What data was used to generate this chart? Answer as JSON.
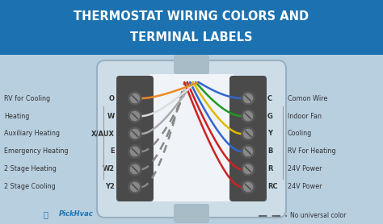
{
  "title_line1": "THERMOSTAT WIRING COLORS AND",
  "title_line2": "TERMINAL LABELS",
  "title_bg": "#1c72b0",
  "title_text_color": "#ffffff",
  "body_bg": "#b8cfe0",
  "connector_bg": "#4a4a4a",
  "left_labels": [
    "2 Stage Cooling",
    "2 Stage Heating",
    "Emergency Heating",
    "Auxiliary Heating",
    "Heating",
    "RV for Cooling"
  ],
  "left_terminals": [
    "Y2",
    "W2",
    "E",
    "X/AUX",
    "W",
    "O"
  ],
  "right_terminals": [
    "RC",
    "R",
    "B",
    "Y",
    "G",
    "C"
  ],
  "right_labels": [
    "24V Power",
    "24V Power",
    "RV For Heating",
    "Cooling",
    "Indoor Fan",
    "Comon Wire"
  ],
  "left_wire_colors": [
    "#aaccee",
    "#cc8822",
    "#aaaaaa",
    "#aaaaaa",
    "#dddddd",
    "#ee8822"
  ],
  "right_wire_colors": [
    "#cc2222",
    "#cc2222",
    "#3366cc",
    "#ddbb00",
    "#229922",
    "#3366cc"
  ],
  "dashed_rows": [
    0,
    1,
    2
  ],
  "logo_text": "PickHvac",
  "logo_color": "#1c72b0",
  "footer_dash_color": "#666666",
  "footer_text": "No universal color",
  "text_color": "#333333",
  "terminal_rows": 6,
  "figsize": [
    4.74,
    2.78
  ],
  "dpi": 100
}
